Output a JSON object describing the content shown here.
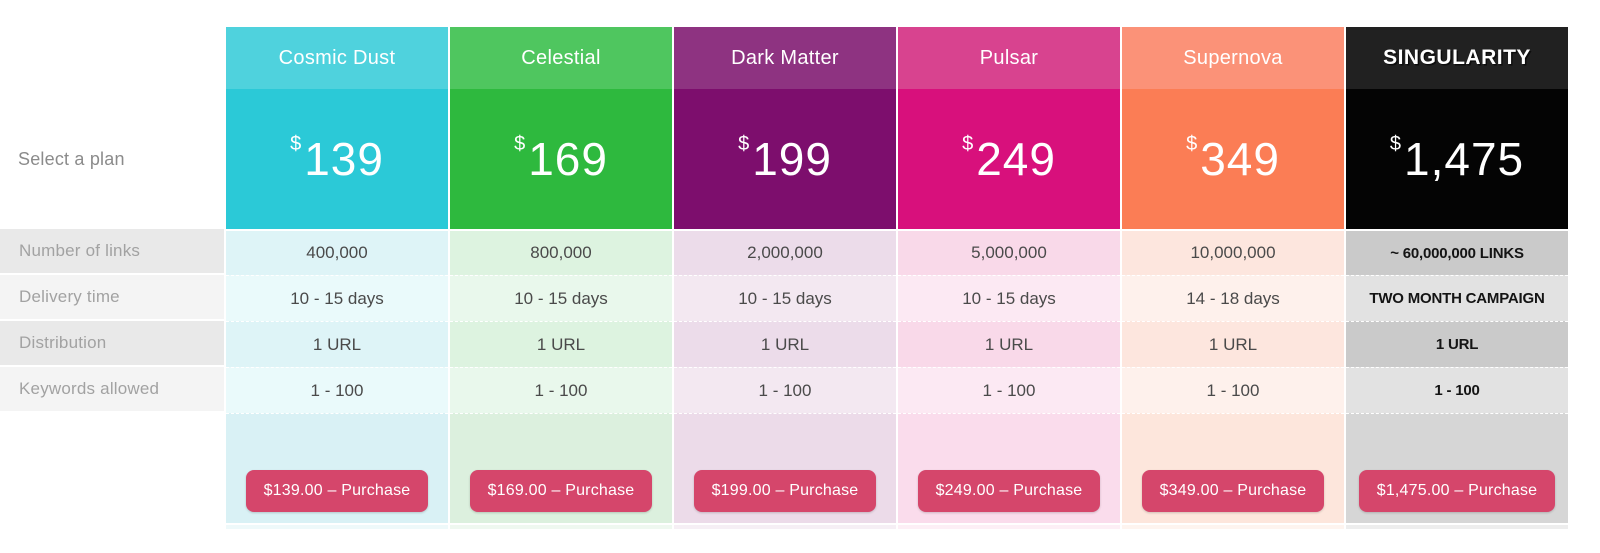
{
  "labels": {
    "select_plan": "Select a plan",
    "rows": [
      "Number of links",
      "Delivery time",
      "Distribution",
      "Keywords allowed"
    ]
  },
  "purchase_button_color": "#d5466b",
  "plans": [
    {
      "name": "Cosmic Dust",
      "currency": "$",
      "price": "139",
      "values": [
        "400,000",
        "10 - 15 days",
        "1 URL",
        "1 - 100"
      ],
      "button_label": "$139.00 – Purchase",
      "emphasis": false,
      "colors": {
        "head": "#4fd2dd",
        "price": "#2bc9d7",
        "cellA": "#def4f7",
        "cellB": "#eafafb",
        "foot": "#d9f1f5"
      }
    },
    {
      "name": "Celestial",
      "currency": "$",
      "price": "169",
      "values": [
        "800,000",
        "10 - 15 days",
        "1 URL",
        "1 - 100"
      ],
      "button_label": "$169.00 – Purchase",
      "emphasis": false,
      "colors": {
        "head": "#4fc65f",
        "price": "#2eb93e",
        "cellA": "#ddf3e0",
        "cellB": "#e9f8ec",
        "foot": "#dcf0de"
      }
    },
    {
      "name": "Dark Matter",
      "currency": "$",
      "price": "199",
      "values": [
        "2,000,000",
        "10 - 15 days",
        "1 URL",
        "1 - 100"
      ],
      "button_label": "$199.00 – Purchase",
      "emphasis": false,
      "colors": {
        "head": "#8e3381",
        "price": "#7d0e6d",
        "cellA": "#ecdcea",
        "cellB": "#f3e8f1",
        "foot": "#ecdbe9"
      }
    },
    {
      "name": "Pulsar",
      "currency": "$",
      "price": "249",
      "values": [
        "5,000,000",
        "10 - 15 days",
        "1 URL",
        "1 - 100"
      ],
      "button_label": "$249.00 – Purchase",
      "emphasis": false,
      "colors": {
        "head": "#d8438f",
        "price": "#d8107c",
        "cellA": "#f9d9e9",
        "cellB": "#fce9f3",
        "foot": "#fadcec"
      }
    },
    {
      "name": "Supernova",
      "currency": "$",
      "price": "349",
      "values": [
        "10,000,000",
        "14 - 18 days",
        "1 URL",
        "1 - 100"
      ],
      "button_label": "$349.00 – Purchase",
      "emphasis": false,
      "colors": {
        "head": "#fb9278",
        "price": "#fb7d55",
        "cellA": "#fde6de",
        "cellB": "#fef1ec",
        "foot": "#fde6dc"
      }
    },
    {
      "name": "SINGULARITY",
      "currency": "$",
      "price": "1,475",
      "values": [
        "~ 60,000,000 LINKS",
        "TWO MONTH CAMPAIGN",
        "1 URL",
        "1 - 100"
      ],
      "button_label": "$1,475.00 – Purchase",
      "emphasis": true,
      "colors": {
        "head": "#212121",
        "price": "#040404",
        "cellA": "#cacaca",
        "cellB": "#e2e2e2",
        "foot": "#d6d6d6"
      }
    }
  ]
}
